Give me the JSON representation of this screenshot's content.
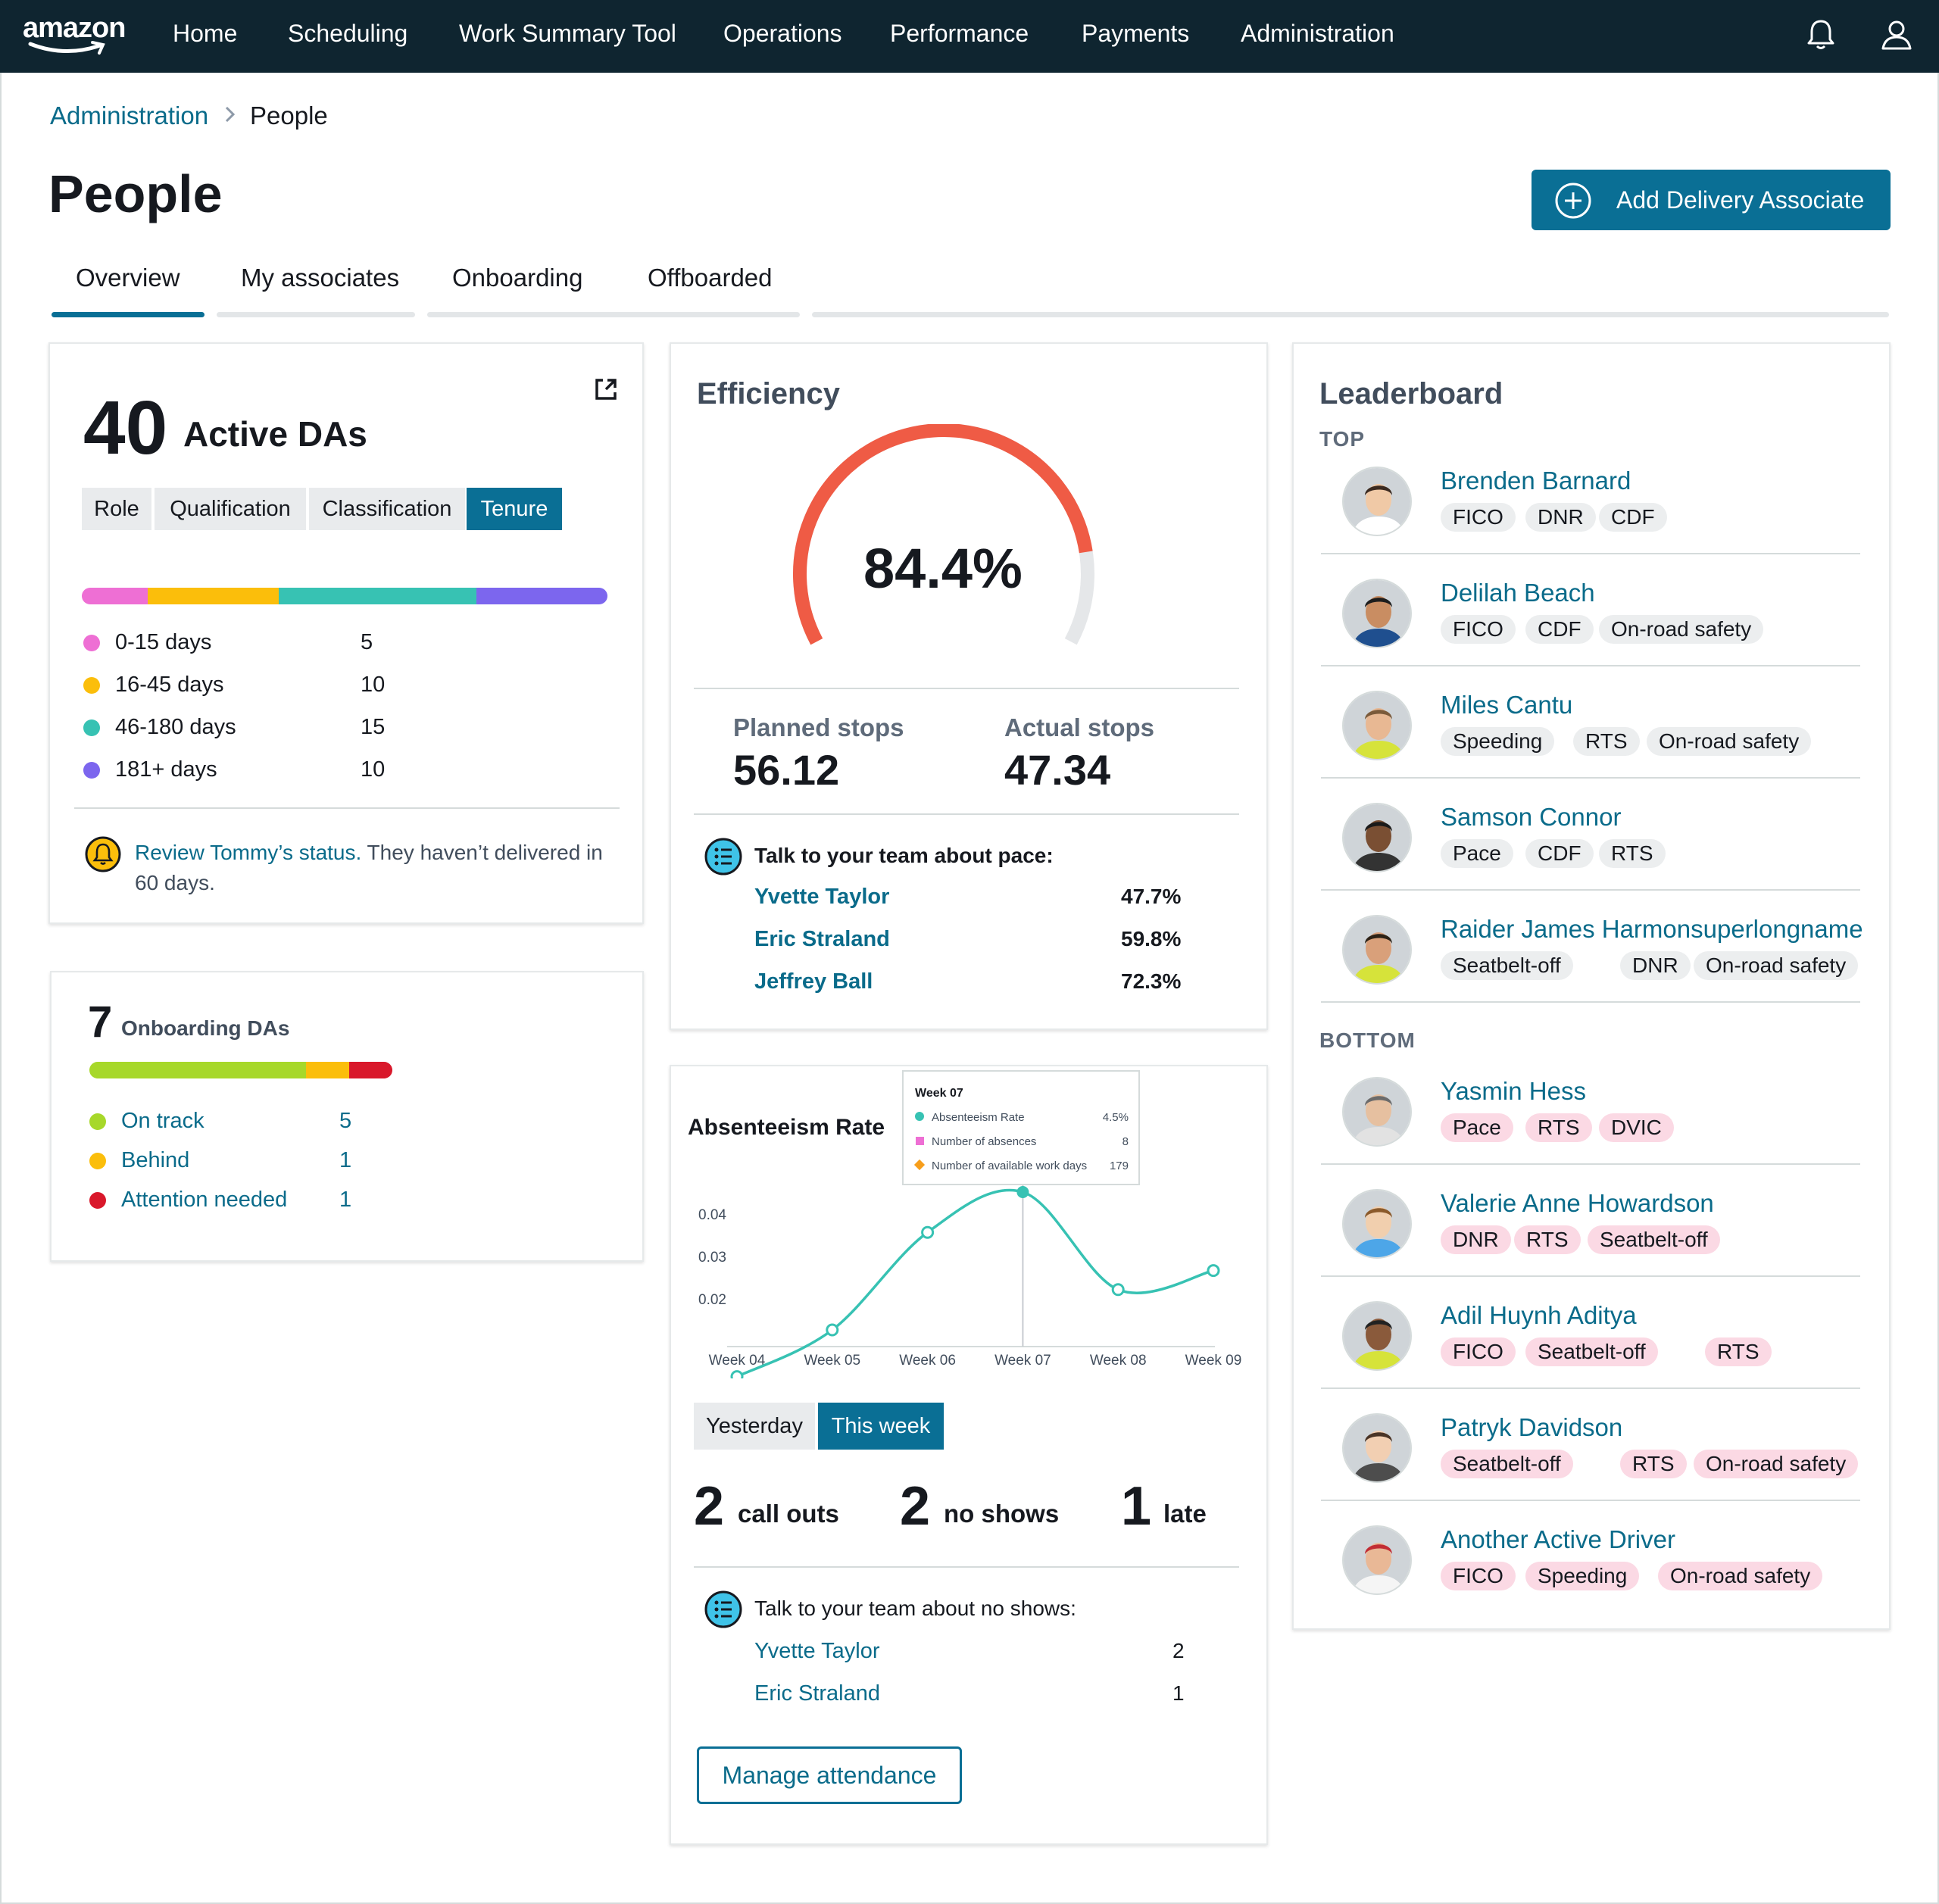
{
  "nav": {
    "logo": "amazon",
    "items": [
      "Home",
      "Scheduling",
      "Work Summary Tool",
      "Operations",
      "Performance",
      "Payments",
      "Administration"
    ],
    "icons": [
      "bell-icon",
      "user-icon"
    ]
  },
  "breadcrumb": {
    "parent": "Administration",
    "current": "People"
  },
  "page": {
    "title": "People",
    "add_button": "Add Delivery Associate"
  },
  "tabs": [
    "Overview",
    "My associates",
    "Onboarding",
    "Offboarded"
  ],
  "active_das": {
    "count": "40",
    "label": "Active DAs",
    "segments": [
      "Role",
      "Qualification",
      "Classification",
      "Tenure"
    ],
    "active_segment": "Tenure",
    "tenure": [
      {
        "label": "0-15 days",
        "value": 5,
        "color": "#ee6fd4"
      },
      {
        "label": "16-45 days",
        "value": 10,
        "color": "#fbbe0b"
      },
      {
        "label": "46-180 days",
        "value": 15,
        "color": "#37c2b3"
      },
      {
        "label": "181+ days",
        "value": 10,
        "color": "#7c66ee"
      }
    ],
    "alert_link": "Review Tommy’s status.",
    "alert_text_1": " They haven’t delivered in",
    "alert_text_2": "60 days."
  },
  "onboarding": {
    "count": "7",
    "label": "Onboarding DAs",
    "items": [
      {
        "label": "On track",
        "value": 5,
        "color": "#a7d82a"
      },
      {
        "label": "Behind",
        "value": 1,
        "color": "#fbbe0b"
      },
      {
        "label": "Attention needed",
        "value": 1,
        "color": "#d9182b"
      }
    ]
  },
  "efficiency": {
    "title": "Efficiency",
    "value_text": "84.4%",
    "value": 84.4,
    "planned_label": "Planned stops",
    "planned_value": "56.12",
    "actual_label": "Actual stops",
    "actual_value": "47.34",
    "talk_label": "Talk to your team about pace:",
    "people": [
      {
        "name": "Yvette Taylor",
        "value": "47.7%"
      },
      {
        "name": "Eric Straland",
        "value": "59.8%"
      },
      {
        "name": "Jeffrey Ball",
        "value": "72.3%"
      }
    ]
  },
  "absenteeism": {
    "title": "Absenteeism Rate",
    "tooltip": {
      "title": "Week 07",
      "rows": [
        {
          "label": "Absenteeism Rate",
          "value": "4.5%",
          "color": "#37c2b3"
        },
        {
          "label": "Number of absences",
          "value": "8",
          "color": "#ee6fd4"
        },
        {
          "label": "Number of available work days",
          "value": "179",
          "color": "#f79e1b"
        }
      ]
    },
    "toggle": [
      "Yesterday",
      "This week"
    ],
    "active_toggle": "This week",
    "counts": [
      {
        "num": "2",
        "label": "call outs"
      },
      {
        "num": "2",
        "label": "no shows"
      },
      {
        "num": "1",
        "label": "late"
      }
    ],
    "talk_label": "Talk to your team about no shows:",
    "people": [
      {
        "name": "Yvette Taylor",
        "value": "2"
      },
      {
        "name": "Eric Straland",
        "value": "1"
      }
    ],
    "manage_button": "Manage attendance"
  },
  "chart_data": {
    "type": "line",
    "x": [
      "Week 04",
      "Week 05",
      "Week 06",
      "Week 07",
      "Week 08",
      "Week 09"
    ],
    "series": [
      {
        "name": "Absenteeism Rate",
        "values": [
          0.0015,
          0.0125,
          0.0355,
          0.045,
          0.022,
          0.0265
        ]
      }
    ],
    "y_ticks": [
      "0.04",
      "0.03",
      "0.02"
    ],
    "ylim": [
      0.0,
      0.05
    ],
    "highlight": "Week 07"
  },
  "leaderboard": {
    "title": "Leaderboard",
    "top_label": "TOP",
    "bottom_label": "BOTTOM",
    "top": [
      {
        "name": "Brenden Barnard",
        "tags": [
          "FICO",
          "DNR",
          "CDF"
        ]
      },
      {
        "name": "Delilah Beach",
        "tags": [
          "FICO",
          "CDF",
          "On-road safety"
        ]
      },
      {
        "name": "Miles Cantu",
        "tags": [
          "Speeding",
          "RTS",
          "On-road safety"
        ]
      },
      {
        "name": "Samson Connor",
        "tags": [
          "Pace",
          "CDF",
          "RTS"
        ]
      },
      {
        "name": "Raider James Harmonsuperlongname",
        "tags": [
          "Seatbelt-off",
          "DNR",
          "On-road safety"
        ]
      }
    ],
    "bottom": [
      {
        "name": "Yasmin Hess",
        "tags": [
          "Pace",
          "RTS",
          "DVIC"
        ]
      },
      {
        "name": "Valerie Anne Howardson",
        "tags": [
          "DNR",
          "RTS",
          "Seatbelt-off"
        ]
      },
      {
        "name": "Adil Huynh Aditya",
        "tags": [
          "FICO",
          "Seatbelt-off",
          "RTS"
        ]
      },
      {
        "name": "Patryk Davidson",
        "tags": [
          "Seatbelt-off",
          "RTS",
          "On-road safety"
        ]
      },
      {
        "name": "Another Active Driver",
        "tags": [
          "FICO",
          "Speeding",
          "On-road safety"
        ]
      }
    ]
  },
  "colors": {
    "nav_bg": "#0f2530",
    "accent": "#0a6f95",
    "link": "#0a6b8a",
    "gauge": "#ef5b45"
  }
}
